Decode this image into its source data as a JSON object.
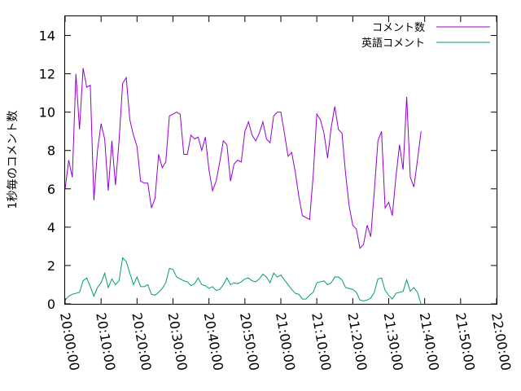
{
  "chart_data": {
    "type": "line",
    "ylabel": "1秒毎のコメント数",
    "xlabel": "",
    "ylim": [
      0,
      15
    ],
    "yticks": [
      0,
      2,
      4,
      6,
      8,
      10,
      12,
      14
    ],
    "xlim": [
      "20:00:00",
      "22:00:00"
    ],
    "xticks": [
      "20:00:00",
      "20:10:00",
      "20:20:00",
      "20:30:00",
      "20:40:00",
      "20:50:00",
      "21:00:00",
      "21:10:00",
      "21:20:00",
      "21:30:00",
      "21:40:00",
      "21:50:00",
      "22:00:00"
    ],
    "grid": false,
    "legend_position": "top-right",
    "series": [
      {
        "name": "コメント数",
        "color": "#9400d3",
        "points": [
          [
            "20:00:00",
            6.0
          ],
          [
            "20:01:00",
            7.5
          ],
          [
            "20:02:00",
            6.6
          ],
          [
            "20:03:00",
            12.0
          ],
          [
            "20:04:00",
            9.1
          ],
          [
            "20:05:00",
            12.3
          ],
          [
            "20:06:00",
            11.3
          ],
          [
            "20:07:00",
            11.4
          ],
          [
            "20:08:00",
            5.4
          ],
          [
            "20:09:00",
            8.0
          ],
          [
            "20:10:00",
            9.4
          ],
          [
            "20:11:00",
            8.6
          ],
          [
            "20:12:00",
            5.9
          ],
          [
            "20:13:00",
            8.5
          ],
          [
            "20:14:00",
            6.2
          ],
          [
            "20:15:00",
            8.5
          ],
          [
            "20:16:00",
            11.5
          ],
          [
            "20:17:00",
            11.8
          ],
          [
            "20:18:00",
            9.6
          ],
          [
            "20:19:00",
            8.8
          ],
          [
            "20:20:00",
            8.2
          ],
          [
            "20:21:00",
            6.4
          ],
          [
            "20:22:00",
            6.3
          ],
          [
            "20:23:00",
            6.3
          ],
          [
            "20:24:00",
            5.0
          ],
          [
            "20:25:00",
            5.5
          ],
          [
            "20:26:00",
            7.8
          ],
          [
            "20:27:00",
            7.1
          ],
          [
            "20:28:00",
            7.4
          ],
          [
            "20:29:00",
            9.8
          ],
          [
            "20:30:00",
            9.9
          ],
          [
            "20:31:00",
            10.0
          ],
          [
            "20:32:00",
            9.9
          ],
          [
            "20:33:00",
            7.8
          ],
          [
            "20:34:00",
            7.8
          ],
          [
            "20:35:00",
            8.8
          ],
          [
            "20:36:00",
            8.6
          ],
          [
            "20:37:00",
            8.7
          ],
          [
            "20:38:00",
            8.0
          ],
          [
            "20:39:00",
            8.7
          ],
          [
            "20:40:00",
            7.0
          ],
          [
            "20:41:00",
            5.9
          ],
          [
            "20:42:00",
            6.4
          ],
          [
            "20:43:00",
            7.4
          ],
          [
            "20:44:00",
            8.5
          ],
          [
            "20:45:00",
            8.3
          ],
          [
            "20:46:00",
            6.4
          ],
          [
            "20:47:00",
            7.3
          ],
          [
            "20:48:00",
            7.5
          ],
          [
            "20:49:00",
            7.4
          ],
          [
            "20:50:00",
            9.0
          ],
          [
            "20:51:00",
            9.5
          ],
          [
            "20:52:00",
            8.8
          ],
          [
            "20:53:00",
            8.5
          ],
          [
            "20:54:00",
            8.9
          ],
          [
            "20:55:00",
            9.5
          ],
          [
            "20:56:00",
            8.6
          ],
          [
            "20:57:00",
            8.4
          ],
          [
            "20:58:00",
            9.8
          ],
          [
            "20:59:00",
            10.0
          ],
          [
            "21:00:00",
            10.0
          ],
          [
            "21:01:00",
            8.9
          ],
          [
            "21:02:00",
            7.7
          ],
          [
            "21:03:00",
            7.9
          ],
          [
            "21:04:00",
            6.9
          ],
          [
            "21:05:00",
            5.6
          ],
          [
            "21:06:00",
            4.6
          ],
          [
            "21:07:00",
            4.5
          ],
          [
            "21:08:00",
            4.4
          ],
          [
            "21:09:00",
            6.7
          ],
          [
            "21:10:00",
            9.9
          ],
          [
            "21:11:00",
            9.6
          ],
          [
            "21:12:00",
            8.9
          ],
          [
            "21:13:00",
            7.6
          ],
          [
            "21:14:00",
            9.2
          ],
          [
            "21:15:00",
            10.3
          ],
          [
            "21:16:00",
            9.1
          ],
          [
            "21:17:00",
            8.9
          ],
          [
            "21:18:00",
            6.8
          ],
          [
            "21:19:00",
            5.1
          ],
          [
            "21:20:00",
            4.1
          ],
          [
            "21:21:00",
            3.9
          ],
          [
            "21:22:00",
            2.9
          ],
          [
            "21:23:00",
            3.1
          ],
          [
            "21:24:00",
            4.1
          ],
          [
            "21:25:00",
            3.5
          ],
          [
            "21:26:00",
            5.9
          ],
          [
            "21:27:00",
            8.5
          ],
          [
            "21:28:00",
            9.0
          ],
          [
            "21:29:00",
            5.0
          ],
          [
            "21:30:00",
            5.3
          ],
          [
            "21:31:00",
            4.6
          ],
          [
            "21:32:00",
            6.6
          ],
          [
            "21:33:00",
            8.3
          ],
          [
            "21:34:00",
            7.0
          ],
          [
            "21:35:00",
            10.8
          ],
          [
            "21:36:00",
            6.6
          ],
          [
            "21:37:00",
            6.1
          ],
          [
            "21:38:00",
            7.5
          ],
          [
            "21:39:00",
            9.0
          ]
        ]
      },
      {
        "name": "英語コメント",
        "color": "#009e73",
        "points": [
          [
            "20:00:00",
            0.2
          ],
          [
            "20:01:00",
            0.4
          ],
          [
            "20:02:00",
            0.5
          ],
          [
            "20:03:00",
            0.55
          ],
          [
            "20:04:00",
            0.6
          ],
          [
            "20:05:00",
            1.2
          ],
          [
            "20:06:00",
            1.35
          ],
          [
            "20:07:00",
            0.9
          ],
          [
            "20:08:00",
            0.4
          ],
          [
            "20:09:00",
            0.85
          ],
          [
            "20:10:00",
            1.1
          ],
          [
            "20:11:00",
            1.6
          ],
          [
            "20:12:00",
            0.85
          ],
          [
            "20:13:00",
            1.3
          ],
          [
            "20:14:00",
            1.0
          ],
          [
            "20:15:00",
            1.2
          ],
          [
            "20:16:00",
            2.4
          ],
          [
            "20:17:00",
            2.2
          ],
          [
            "20:18:00",
            1.6
          ],
          [
            "20:19:00",
            1.0
          ],
          [
            "20:20:00",
            1.4
          ],
          [
            "20:21:00",
            0.9
          ],
          [
            "20:22:00",
            0.9
          ],
          [
            "20:23:00",
            1.0
          ],
          [
            "20:24:00",
            0.5
          ],
          [
            "20:25:00",
            0.45
          ],
          [
            "20:26:00",
            0.6
          ],
          [
            "20:27:00",
            0.8
          ],
          [
            "20:28:00",
            1.1
          ],
          [
            "20:29:00",
            1.85
          ],
          [
            "20:30:00",
            1.8
          ],
          [
            "20:31:00",
            1.4
          ],
          [
            "20:32:00",
            1.3
          ],
          [
            "20:33:00",
            1.2
          ],
          [
            "20:34:00",
            1.15
          ],
          [
            "20:35:00",
            0.95
          ],
          [
            "20:36:00",
            1.05
          ],
          [
            "20:37:00",
            1.35
          ],
          [
            "20:38:00",
            1.0
          ],
          [
            "20:39:00",
            0.95
          ],
          [
            "20:40:00",
            0.8
          ],
          [
            "20:41:00",
            0.9
          ],
          [
            "20:42:00",
            0.7
          ],
          [
            "20:43:00",
            0.75
          ],
          [
            "20:44:00",
            1.0
          ],
          [
            "20:45:00",
            1.35
          ],
          [
            "20:46:00",
            1.0
          ],
          [
            "20:47:00",
            1.1
          ],
          [
            "20:48:00",
            1.05
          ],
          [
            "20:49:00",
            1.15
          ],
          [
            "20:50:00",
            1.3
          ],
          [
            "20:51:00",
            1.35
          ],
          [
            "20:52:00",
            1.2
          ],
          [
            "20:53:00",
            1.15
          ],
          [
            "20:54:00",
            1.3
          ],
          [
            "20:55:00",
            1.55
          ],
          [
            "20:56:00",
            1.4
          ],
          [
            "20:57:00",
            1.1
          ],
          [
            "20:58:00",
            1.6
          ],
          [
            "20:59:00",
            1.4
          ],
          [
            "21:00:00",
            1.5
          ],
          [
            "21:01:00",
            1.25
          ],
          [
            "21:02:00",
            1.0
          ],
          [
            "21:03:00",
            0.75
          ],
          [
            "21:04:00",
            0.55
          ],
          [
            "21:05:00",
            0.5
          ],
          [
            "21:06:00",
            0.25
          ],
          [
            "21:07:00",
            0.25
          ],
          [
            "21:08:00",
            0.45
          ],
          [
            "21:09:00",
            0.6
          ],
          [
            "21:10:00",
            1.1
          ],
          [
            "21:11:00",
            1.15
          ],
          [
            "21:12:00",
            1.2
          ],
          [
            "21:13:00",
            1.0
          ],
          [
            "21:14:00",
            1.1
          ],
          [
            "21:15:00",
            1.4
          ],
          [
            "21:16:00",
            1.4
          ],
          [
            "21:17:00",
            1.25
          ],
          [
            "21:18:00",
            0.85
          ],
          [
            "21:19:00",
            0.8
          ],
          [
            "21:20:00",
            0.75
          ],
          [
            "21:21:00",
            0.6
          ],
          [
            "21:22:00",
            0.2
          ],
          [
            "21:23:00",
            0.15
          ],
          [
            "21:24:00",
            0.2
          ],
          [
            "21:25:00",
            0.3
          ],
          [
            "21:26:00",
            0.6
          ],
          [
            "21:27:00",
            1.3
          ],
          [
            "21:28:00",
            1.35
          ],
          [
            "21:29:00",
            0.7
          ],
          [
            "21:30:00",
            0.45
          ],
          [
            "21:31:00",
            0.25
          ],
          [
            "21:32:00",
            0.55
          ],
          [
            "21:33:00",
            0.6
          ],
          [
            "21:34:00",
            0.65
          ],
          [
            "21:35:00",
            1.25
          ],
          [
            "21:36:00",
            0.65
          ],
          [
            "21:37:00",
            0.85
          ],
          [
            "21:38:00",
            0.6
          ],
          [
            "21:39:00",
            0.0
          ]
        ]
      }
    ]
  }
}
